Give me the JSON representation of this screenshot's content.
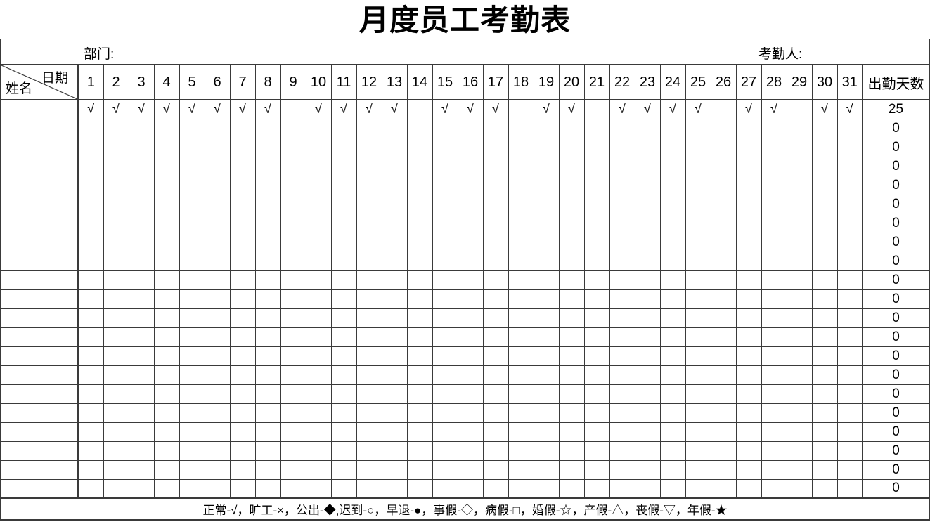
{
  "title": "月度员工考勤表",
  "meta": {
    "department_label": "部门:",
    "attendance_taker_label": "考勤人:"
  },
  "table": {
    "corner": {
      "top_right": "日期",
      "bottom_left": "姓名"
    },
    "day_headers": [
      "1",
      "2",
      "3",
      "4",
      "5",
      "6",
      "7",
      "8",
      "9",
      "10",
      "11",
      "12",
      "13",
      "14",
      "15",
      "16",
      "17",
      "18",
      "19",
      "20",
      "21",
      "22",
      "23",
      "24",
      "25",
      "26",
      "27",
      "28",
      "29",
      "30",
      "31"
    ],
    "total_header": "出勤天数",
    "check_symbol": "√",
    "rows": [
      {
        "name": "",
        "marks": [
          "√",
          "√",
          "√",
          "√",
          "√",
          "√",
          "√",
          "√",
          "",
          "√",
          "√",
          "√",
          "√",
          "",
          "√",
          "√",
          "√",
          "",
          "√",
          "√",
          "",
          "√",
          "√",
          "√",
          "√",
          "",
          "√",
          "√",
          "",
          "√",
          "√"
        ],
        "total": "25"
      },
      {
        "name": "",
        "marks": [],
        "total": "0"
      },
      {
        "name": "",
        "marks": [],
        "total": "0"
      },
      {
        "name": "",
        "marks": [],
        "total": "0"
      },
      {
        "name": "",
        "marks": [],
        "total": "0"
      },
      {
        "name": "",
        "marks": [],
        "total": "0"
      },
      {
        "name": "",
        "marks": [],
        "total": "0"
      },
      {
        "name": "",
        "marks": [],
        "total": "0"
      },
      {
        "name": "",
        "marks": [],
        "total": "0"
      },
      {
        "name": "",
        "marks": [],
        "total": "0"
      },
      {
        "name": "",
        "marks": [],
        "total": "0"
      },
      {
        "name": "",
        "marks": [],
        "total": "0"
      },
      {
        "name": "",
        "marks": [],
        "total": "0"
      },
      {
        "name": "",
        "marks": [],
        "total": "0"
      },
      {
        "name": "",
        "marks": [],
        "total": "0"
      },
      {
        "name": "",
        "marks": [],
        "total": "0"
      },
      {
        "name": "",
        "marks": [],
        "total": "0"
      },
      {
        "name": "",
        "marks": [],
        "total": "0"
      },
      {
        "name": "",
        "marks": [],
        "total": "0"
      },
      {
        "name": "",
        "marks": [],
        "total": "0"
      },
      {
        "name": "",
        "marks": [],
        "total": "0"
      }
    ]
  },
  "legend": {
    "text": "正常-√，旷工-×，公出-◆,迟到-○，早退-●，事假-◇，病假-□，婚假-☆，产假-△，丧假-▽，年假-★"
  },
  "colors": {
    "border": "#3a3a3a",
    "text": "#000000",
    "background": "#ffffff"
  }
}
